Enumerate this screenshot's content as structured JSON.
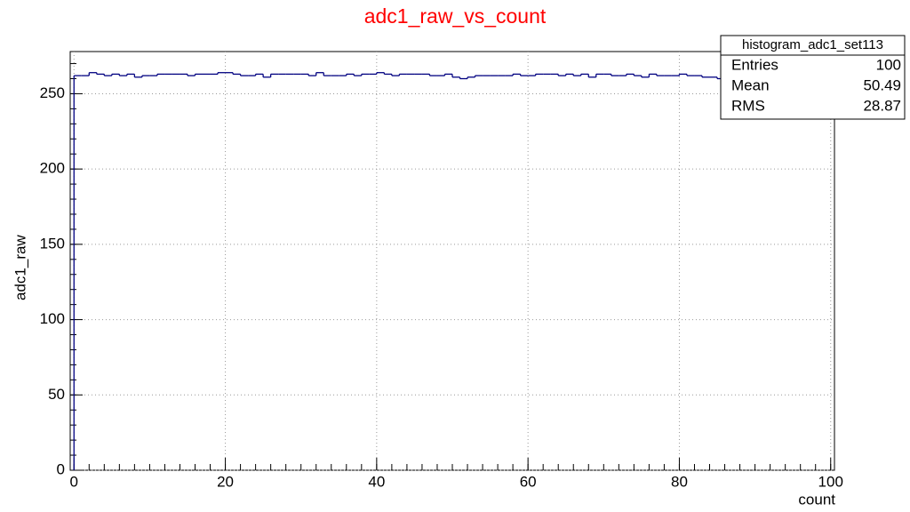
{
  "chart_data": {
    "type": "histogram",
    "title": "adc1_raw_vs_count",
    "x_label": "count",
    "y_label": "adc1_raw",
    "bins": [
      0,
      1,
      2,
      3,
      4,
      5,
      6,
      7,
      8,
      9,
      10,
      11,
      12,
      13,
      14,
      15,
      16,
      17,
      18,
      19,
      20,
      21,
      22,
      23,
      24,
      25,
      26,
      27,
      28,
      29,
      30,
      31,
      32,
      33,
      34,
      35,
      36,
      37,
      38,
      39,
      40,
      41,
      42,
      43,
      44,
      45,
      46,
      47,
      48,
      49,
      50,
      51,
      52,
      53,
      54,
      55,
      56,
      57,
      58,
      59,
      60,
      61,
      62,
      63,
      64,
      65,
      66,
      67,
      68,
      69,
      70,
      71,
      72,
      73,
      74,
      75,
      76,
      77,
      78,
      79,
      80,
      81,
      82,
      83,
      84,
      85,
      86,
      87,
      88,
      89,
      90,
      91,
      92,
      93,
      94,
      95,
      96,
      97,
      98,
      99,
      100
    ],
    "values": [
      262,
      262,
      264,
      263,
      262,
      263,
      262,
      263,
      261,
      262,
      262,
      263,
      263,
      263,
      263,
      262,
      263,
      263,
      263,
      264,
      264,
      263,
      262,
      262,
      263,
      261,
      263,
      263,
      263,
      263,
      263,
      262,
      264,
      262,
      262,
      262,
      263,
      262,
      263,
      263,
      264,
      263,
      262,
      263,
      263,
      263,
      263,
      262,
      262,
      263,
      261,
      260,
      261,
      262,
      262,
      262,
      262,
      262,
      263,
      262,
      262,
      263,
      263,
      263,
      262,
      263,
      262,
      263,
      261,
      263,
      263,
      262,
      262,
      263,
      262,
      261,
      263,
      262,
      262,
      262,
      263,
      262,
      262,
      261,
      261,
      260,
      262,
      263,
      262,
      263,
      262,
      263,
      262,
      262,
      263,
      262,
      262,
      263,
      262,
      262
    ],
    "color": "#000080",
    "xlim": [
      -0.5,
      100.5
    ],
    "ylim": [
      0,
      278
    ],
    "xticks": [
      0,
      20,
      40,
      60,
      80,
      100
    ],
    "yticks": [
      0,
      50,
      100,
      150,
      200,
      250
    ],
    "grid": true,
    "stats": {
      "title": "histogram_adc1_set113",
      "rows": [
        {
          "label": "Entries",
          "value": 100
        },
        {
          "label": "Mean",
          "value": 50.49
        },
        {
          "label": "RMS",
          "value": 28.87
        }
      ]
    }
  }
}
